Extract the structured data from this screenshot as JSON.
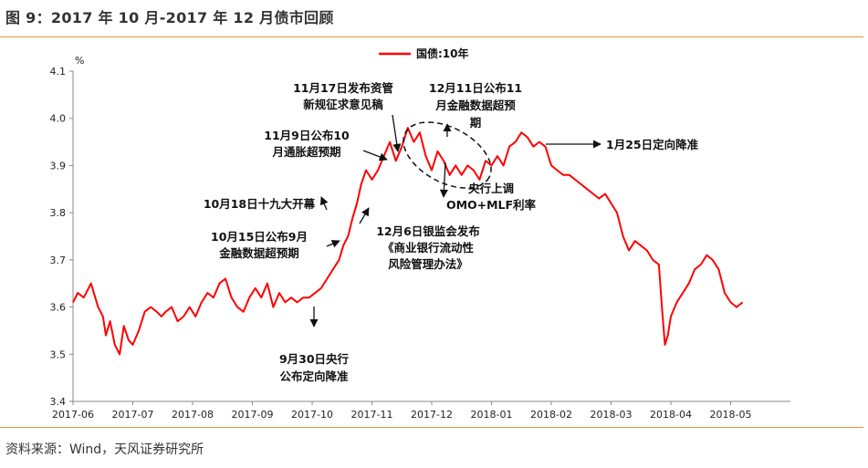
{
  "figure": {
    "title": "图 9：2017 年 10 月-2017 年 12 月债市回顾",
    "source": "资料来源：Wind，天风证券研究所"
  },
  "chart_data": {
    "type": "line",
    "ylabel": "%",
    "ylim": [
      3.4,
      4.1
    ],
    "yticks": [
      "3.4",
      "3.5",
      "3.6",
      "3.7",
      "3.8",
      "3.9",
      "4.0",
      "4.1"
    ],
    "xticks": [
      "2017-06",
      "2017-07",
      "2017-08",
      "2017-09",
      "2017-10",
      "2017-11",
      "2017-12",
      "2018-01",
      "2018-02",
      "2018-03",
      "2018-04",
      "2018-05"
    ],
    "xlim": [
      0,
      12
    ],
    "legend": {
      "position": "top-center"
    },
    "series": [
      {
        "name": "国债:10年",
        "color": "#ff0000",
        "points": [
          [
            0.0,
            3.61
          ],
          [
            0.08,
            3.63
          ],
          [
            0.18,
            3.62
          ],
          [
            0.3,
            3.65
          ],
          [
            0.42,
            3.6
          ],
          [
            0.5,
            3.58
          ],
          [
            0.55,
            3.54
          ],
          [
            0.62,
            3.57
          ],
          [
            0.7,
            3.52
          ],
          [
            0.78,
            3.5
          ],
          [
            0.85,
            3.56
          ],
          [
            0.93,
            3.53
          ],
          [
            1.0,
            3.52
          ],
          [
            1.1,
            3.55
          ],
          [
            1.2,
            3.59
          ],
          [
            1.3,
            3.6
          ],
          [
            1.4,
            3.59
          ],
          [
            1.48,
            3.58
          ],
          [
            1.55,
            3.59
          ],
          [
            1.65,
            3.6
          ],
          [
            1.75,
            3.57
          ],
          [
            1.85,
            3.58
          ],
          [
            1.95,
            3.6
          ],
          [
            2.05,
            3.58
          ],
          [
            2.15,
            3.61
          ],
          [
            2.25,
            3.63
          ],
          [
            2.35,
            3.62
          ],
          [
            2.45,
            3.65
          ],
          [
            2.55,
            3.66
          ],
          [
            2.65,
            3.62
          ],
          [
            2.75,
            3.6
          ],
          [
            2.85,
            3.59
          ],
          [
            2.95,
            3.62
          ],
          [
            3.05,
            3.64
          ],
          [
            3.15,
            3.62
          ],
          [
            3.25,
            3.65
          ],
          [
            3.35,
            3.6
          ],
          [
            3.45,
            3.63
          ],
          [
            3.55,
            3.61
          ],
          [
            3.65,
            3.62
          ],
          [
            3.75,
            3.61
          ],
          [
            3.85,
            3.62
          ],
          [
            3.95,
            3.62
          ],
          [
            4.05,
            3.63
          ],
          [
            4.15,
            3.64
          ],
          [
            4.25,
            3.66
          ],
          [
            4.35,
            3.68
          ],
          [
            4.45,
            3.7
          ],
          [
            4.52,
            3.73
          ],
          [
            4.6,
            3.75
          ],
          [
            4.68,
            3.79
          ],
          [
            4.75,
            3.82
          ],
          [
            4.82,
            3.86
          ],
          [
            4.9,
            3.89
          ],
          [
            5.0,
            3.87
          ],
          [
            5.1,
            3.89
          ],
          [
            5.2,
            3.92
          ],
          [
            5.3,
            3.95
          ],
          [
            5.4,
            3.91
          ],
          [
            5.5,
            3.94
          ],
          [
            5.6,
            3.98
          ],
          [
            5.7,
            3.95
          ],
          [
            5.8,
            3.97
          ],
          [
            5.9,
            3.92
          ],
          [
            6.0,
            3.89
          ],
          [
            6.1,
            3.93
          ],
          [
            6.2,
            3.91
          ],
          [
            6.3,
            3.88
          ],
          [
            6.4,
            3.9
          ],
          [
            6.5,
            3.88
          ],
          [
            6.6,
            3.9
          ],
          [
            6.7,
            3.89
          ],
          [
            6.8,
            3.87
          ],
          [
            6.9,
            3.91
          ],
          [
            7.0,
            3.9
          ],
          [
            7.1,
            3.92
          ],
          [
            7.2,
            3.9
          ],
          [
            7.3,
            3.94
          ],
          [
            7.4,
            3.95
          ],
          [
            7.5,
            3.97
          ],
          [
            7.6,
            3.96
          ],
          [
            7.7,
            3.94
          ],
          [
            7.8,
            3.95
          ],
          [
            7.9,
            3.94
          ],
          [
            8.0,
            3.9
          ],
          [
            8.1,
            3.89
          ],
          [
            8.2,
            3.88
          ],
          [
            8.3,
            3.88
          ],
          [
            8.4,
            3.87
          ],
          [
            8.5,
            3.86
          ],
          [
            8.6,
            3.85
          ],
          [
            8.7,
            3.84
          ],
          [
            8.8,
            3.83
          ],
          [
            8.9,
            3.84
          ],
          [
            9.0,
            3.82
          ],
          [
            9.1,
            3.8
          ],
          [
            9.2,
            3.75
          ],
          [
            9.3,
            3.72
          ],
          [
            9.4,
            3.74
          ],
          [
            9.5,
            3.73
          ],
          [
            9.6,
            3.72
          ],
          [
            9.7,
            3.7
          ],
          [
            9.8,
            3.69
          ],
          [
            9.85,
            3.6
          ],
          [
            9.9,
            3.52
          ],
          [
            9.95,
            3.54
          ],
          [
            10.0,
            3.58
          ],
          [
            10.1,
            3.61
          ],
          [
            10.2,
            3.63
          ],
          [
            10.3,
            3.65
          ],
          [
            10.4,
            3.68
          ],
          [
            10.5,
            3.69
          ],
          [
            10.6,
            3.71
          ],
          [
            10.7,
            3.7
          ],
          [
            10.8,
            3.68
          ],
          [
            10.9,
            3.63
          ],
          [
            11.0,
            3.61
          ],
          [
            11.1,
            3.6
          ],
          [
            11.2,
            3.61
          ]
        ]
      }
    ],
    "annotations": [
      {
        "lines": [
          "11月17日发布资管",
          "新规征求意见稿"
        ]
      },
      {
        "lines": [
          "12月11日公布11",
          "月金融数据超预",
          "期"
        ]
      },
      {
        "lines": [
          "11月9日公布10",
          "月通胀超预期"
        ]
      },
      {
        "lines": [
          "1月25日定向降准"
        ]
      },
      {
        "lines": [
          "10月18日十九大开幕"
        ]
      },
      {
        "lines": [
          "10月15日公布9月",
          "金融数据超预期"
        ]
      },
      {
        "lines": [
          "央行上调",
          "OMO+MLF利率"
        ]
      },
      {
        "lines": [
          "12月6日银监会发布",
          "《商业银行流动性",
          "风险管理办法》"
        ]
      },
      {
        "lines": [
          "9月30日央行",
          "公布定向降准"
        ]
      }
    ]
  }
}
